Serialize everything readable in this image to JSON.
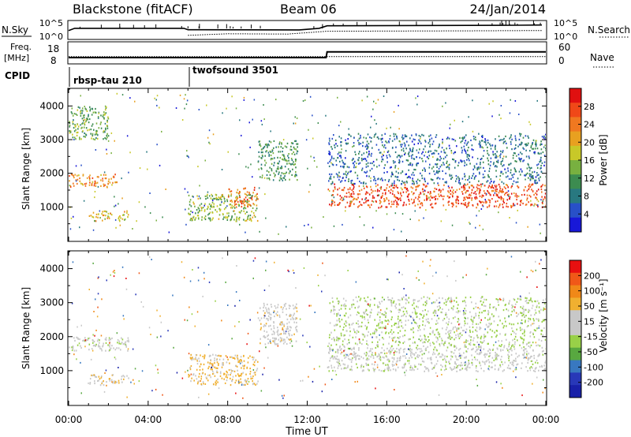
{
  "header": {
    "station": "Blackstone (fitACF)",
    "beam": "Beam 06",
    "date": "24/Jan/2014"
  },
  "strips": {
    "nsky_label": "N.Sky",
    "nsky_ticks": [
      "10^5",
      "10^0"
    ],
    "nsearch_label": "N.Search",
    "nsearch_ticks": [
      "10^5",
      "10^0"
    ],
    "freq_label": "Freq.",
    "freq_unit": "[MHz]",
    "freq_ticks": [
      "18",
      "8"
    ],
    "nave_label": "Nave",
    "nave_ticks": [
      "60",
      "0"
    ],
    "cpid_label": "CPID",
    "cpid_segments": [
      {
        "label": "rbsp-tau 210",
        "start_hour": 0
      },
      {
        "label": "twofsound 3501",
        "start_hour": 6
      }
    ]
  },
  "axes": {
    "ylabel": "Slant Range [km]",
    "xlabel": "Time UT",
    "yticks": [
      "1000",
      "2000",
      "3000",
      "4000"
    ],
    "xticks": [
      "00:00",
      "04:00",
      "08:00",
      "12:00",
      "16:00",
      "20:00",
      "00:00"
    ]
  },
  "colorbars": {
    "power": {
      "label": "Power [dB]",
      "ticks": [
        "4",
        "8",
        "12",
        "16",
        "20",
        "24",
        "28"
      ],
      "colors": [
        "#1818d8",
        "#2850c8",
        "#287880",
        "#3c8c50",
        "#78b040",
        "#c8c828",
        "#e8a020",
        "#f07820",
        "#f04818",
        "#e01010"
      ]
    },
    "velocity": {
      "label": "Velocity [m s⁻¹]",
      "ticks": [
        "200",
        "100",
        "50",
        "15",
        "-15",
        "-50",
        "-100",
        "-200"
      ],
      "colors": [
        "#1820a8",
        "#2838b8",
        "#3878c0",
        "#58a840",
        "#98d048",
        "#c8c8c8",
        "#c8c8c8",
        "#f0b030",
        "#f08818",
        "#f05818",
        "#e81010"
      ]
    }
  },
  "chart_data": [
    {
      "type": "line",
      "title": "N.Sky / N.Search",
      "x_unit": "hours UT",
      "xlim": [
        0,
        24
      ],
      "series": [
        {
          "name": "N.Sky",
          "x": [
            0,
            0.3,
            5.8,
            6.0,
            11.6,
            12.6,
            13.0,
            22.5,
            23.8
          ],
          "y": [
            400,
            3000,
            3000,
            800,
            700,
            3000,
            30000,
            50000,
            60000
          ]
        },
        {
          "name": "N.Search",
          "x": [
            6.0,
            8.0,
            11.0,
            13.0,
            20.0,
            23.8
          ],
          "y": [
            5,
            20,
            15,
            200,
            300,
            400
          ]
        }
      ]
    },
    {
      "type": "line",
      "title": "Freq. / Nave",
      "x_unit": "hours UT",
      "xlim": [
        0,
        24
      ],
      "series": [
        {
          "name": "Freq. [MHz]",
          "x": [
            0,
            12.95,
            13.0,
            24
          ],
          "y": [
            10.5,
            10.5,
            13.5,
            13.5
          ]
        },
        {
          "name": "Nave",
          "x": [
            0,
            24
          ],
          "y": [
            18,
            18
          ]
        }
      ]
    },
    {
      "type": "heatmap",
      "title": "Power [dB]",
      "x_unit": "hours UT",
      "y_unit": "km",
      "xlim": [
        0,
        24
      ],
      "ylim": [
        0,
        4500
      ],
      "clim": [
        0,
        30
      ],
      "regions": [
        {
          "t": [
            0.0,
            2.5
          ],
          "range_km": [
            1600,
            2000
          ],
          "power_db": 22
        },
        {
          "t": [
            0.0,
            2.0
          ],
          "range_km": [
            3000,
            4000
          ],
          "power_db": 12
        },
        {
          "t": [
            1.0,
            3.0
          ],
          "range_km": [
            600,
            900
          ],
          "power_db": 18
        },
        {
          "t": [
            6.0,
            9.5
          ],
          "range_km": [
            600,
            1400
          ],
          "power_db": 14
        },
        {
          "t": [
            8.0,
            9.5
          ],
          "range_km": [
            1000,
            1600
          ],
          "power_db": 24
        },
        {
          "t": [
            9.5,
            11.5
          ],
          "range_km": [
            1800,
            3000
          ],
          "power_db": 10
        },
        {
          "t": [
            13.0,
            24.0
          ],
          "range_km": [
            1000,
            1700
          ],
          "power_db": 26
        },
        {
          "t": [
            13.0,
            24.0
          ],
          "range_km": [
            1700,
            3200
          ],
          "power_db": 6
        }
      ]
    },
    {
      "type": "heatmap",
      "title": "Velocity [m s⁻¹]",
      "x_unit": "hours UT",
      "y_unit": "km",
      "xlim": [
        0,
        24
      ],
      "ylim": [
        0,
        4500
      ],
      "clim": [
        -200,
        200
      ],
      "regions": [
        {
          "t": [
            0.0,
            3.0
          ],
          "range_km": [
            1600,
            2000
          ],
          "velocity_ms": 0
        },
        {
          "t": [
            1.0,
            3.0
          ],
          "range_km": [
            600,
            900
          ],
          "velocity_ms": -50
        },
        {
          "t": [
            6.0,
            9.5
          ],
          "range_km": [
            600,
            1500
          ],
          "velocity_ms": -70
        },
        {
          "t": [
            9.5,
            11.5
          ],
          "range_km": [
            1800,
            3000
          ],
          "velocity_ms": -40
        },
        {
          "t": [
            13.0,
            24.0
          ],
          "range_km": [
            1000,
            1700
          ],
          "velocity_ms": 0
        },
        {
          "t": [
            13.0,
            24.0
          ],
          "range_km": [
            1700,
            3200
          ],
          "velocity_ms": 20
        }
      ]
    }
  ]
}
